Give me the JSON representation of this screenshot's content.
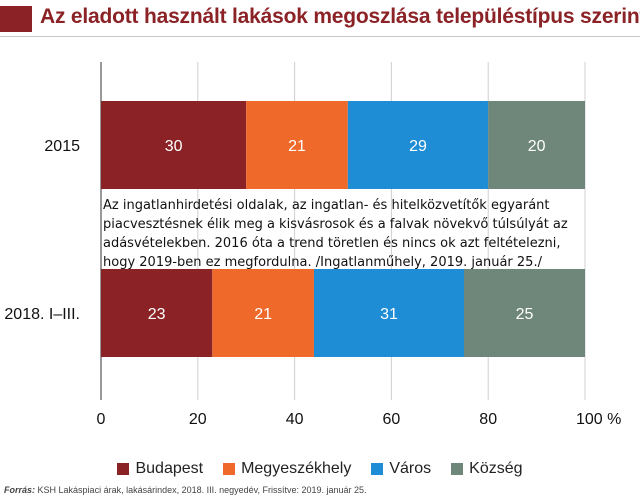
{
  "title": "Az eladott használt lakások megoszlása településtípus szerint",
  "chart_data": {
    "type": "bar",
    "orientation": "horizontal",
    "stacked": true,
    "categories": [
      "2015",
      "2018. I–III."
    ],
    "series": [
      {
        "name": "Budapest",
        "values": [
          30,
          23
        ],
        "color": "#8b2226"
      },
      {
        "name": "Megyeszékhely",
        "values": [
          21,
          21
        ],
        "color": "#ef6a2a"
      },
      {
        "name": "Város",
        "values": [
          29,
          31
        ],
        "color": "#1e8dd6"
      },
      {
        "name": "Község",
        "values": [
          20,
          25
        ],
        "color": "#6f877b"
      }
    ],
    "xlim": [
      0,
      100
    ],
    "xticks": [
      0,
      20,
      40,
      60,
      80,
      100
    ],
    "xtick_labels": [
      "0",
      "20",
      "40",
      "60",
      "80",
      "100 %"
    ],
    "grid": true,
    "legend": "bottom"
  },
  "annotation": "Az ingatlanhirdetési oldalak, az ingatlan- és hitelközvetítők egyaránt piacvesztésnek élik meg a kisvásrosok és a falvak növekvő túlsúlyát az adásvételekben. 2016 óta a trend töretlen és nincs ok azt feltételezni, hogy 2019-ben ez megfordulna. /Ingatlanműhely, 2019. január 25./",
  "source": {
    "label": "Forrás:",
    "text": "KSH Lakáspiaci árak, lakásárindex, 2018. III. negyedév, Frissítve: 2019. január 25."
  }
}
